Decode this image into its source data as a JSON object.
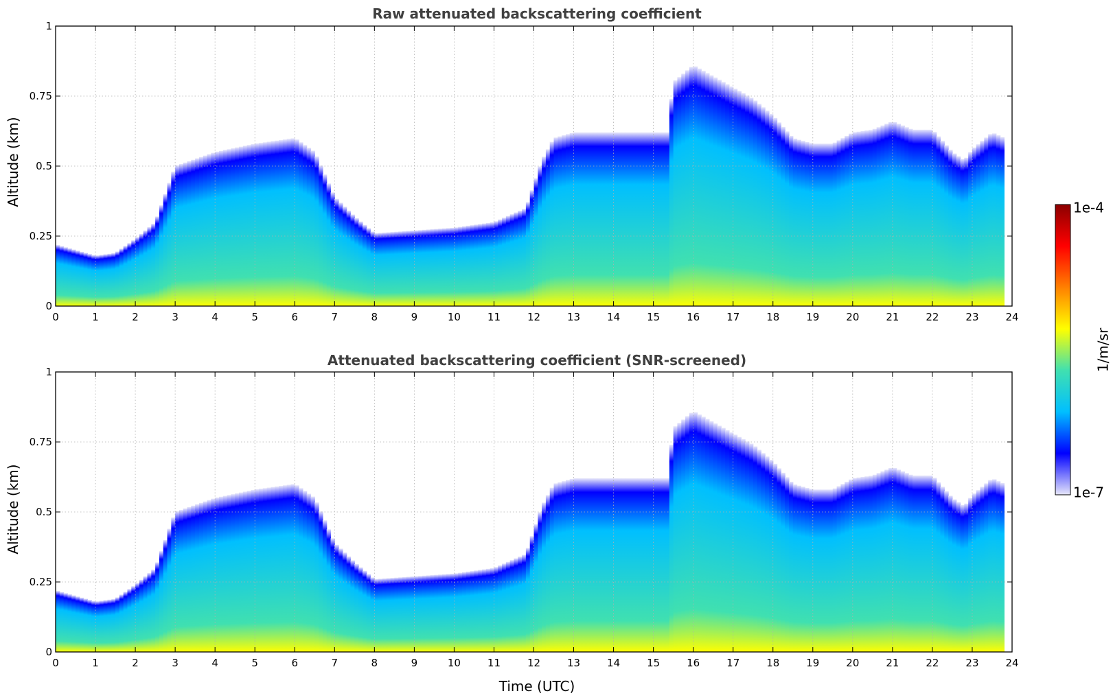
{
  "chart_data": [
    {
      "type": "heatmap",
      "title": "Raw attenuated backscattering coefficient",
      "xlabel": "",
      "ylabel": "Altitude (km)",
      "xlim": [
        0,
        24
      ],
      "ylim": [
        0,
        1
      ],
      "xticks": [
        "0",
        "1",
        "2",
        "3",
        "4",
        "5",
        "6",
        "7",
        "8",
        "9",
        "10",
        "11",
        "12",
        "13",
        "14",
        "15",
        "16",
        "17",
        "18",
        "19",
        "20",
        "21",
        "22",
        "23",
        "24"
      ],
      "yticks": [
        "0",
        "0.25",
        "0.5",
        "0.75",
        "1"
      ],
      "grid": true,
      "screened": false,
      "layer_top_km": {
        "time_utc": [
          0,
          0.5,
          1,
          1.5,
          2,
          2.5,
          3,
          4,
          5,
          6,
          6.5,
          7,
          7.5,
          8,
          9,
          10,
          11,
          11.8,
          12.2,
          12.5,
          13,
          14,
          15,
          15.35,
          15.5,
          16,
          16.5,
          17,
          17.5,
          18,
          18.5,
          19,
          19.5,
          20,
          20.5,
          21,
          21.5,
          22,
          22.5,
          22.8,
          23,
          23.5,
          23.8
        ],
        "altitude_km": [
          0.22,
          0.2,
          0.18,
          0.19,
          0.24,
          0.3,
          0.5,
          0.55,
          0.58,
          0.6,
          0.55,
          0.39,
          0.32,
          0.26,
          0.27,
          0.28,
          0.3,
          0.35,
          0.52,
          0.6,
          0.62,
          0.62,
          0.62,
          0.62,
          0.8,
          0.86,
          0.82,
          0.78,
          0.74,
          0.68,
          0.6,
          0.58,
          0.58,
          0.62,
          0.63,
          0.66,
          0.63,
          0.63,
          0.55,
          0.52,
          0.56,
          0.62,
          0.6
        ]
      }
    },
    {
      "type": "heatmap",
      "title": "Attenuated backscattering coefficient (SNR-screened)",
      "xlabel": "Time (UTC)",
      "ylabel": "Altitude (km)",
      "xlim": [
        0,
        24
      ],
      "ylim": [
        0,
        1
      ],
      "xticks": [
        "0",
        "1",
        "2",
        "3",
        "4",
        "5",
        "6",
        "7",
        "8",
        "9",
        "10",
        "11",
        "12",
        "13",
        "14",
        "15",
        "16",
        "17",
        "18",
        "19",
        "20",
        "21",
        "22",
        "23",
        "24"
      ],
      "yticks": [
        "0",
        "0.25",
        "0.5",
        "0.75",
        "1"
      ],
      "grid": true,
      "screened": true,
      "layer_top_km": {
        "time_utc": [
          0,
          0.5,
          1,
          1.5,
          2,
          2.5,
          3,
          4,
          5,
          6,
          6.5,
          7,
          7.5,
          8,
          9,
          10,
          11,
          11.8,
          12.2,
          12.5,
          13,
          14,
          15,
          15.35,
          15.5,
          16,
          16.5,
          17,
          17.5,
          18,
          18.5,
          19,
          19.5,
          20,
          20.5,
          21,
          21.5,
          22,
          22.5,
          22.8,
          23,
          23.5,
          23.8
        ],
        "altitude_km": [
          0.22,
          0.2,
          0.18,
          0.19,
          0.24,
          0.3,
          0.5,
          0.55,
          0.58,
          0.6,
          0.55,
          0.39,
          0.32,
          0.26,
          0.27,
          0.28,
          0.3,
          0.35,
          0.52,
          0.6,
          0.62,
          0.62,
          0.62,
          0.62,
          0.8,
          0.86,
          0.82,
          0.78,
          0.74,
          0.68,
          0.6,
          0.58,
          0.58,
          0.62,
          0.63,
          0.66,
          0.63,
          0.63,
          0.55,
          0.52,
          0.56,
          0.62,
          0.6
        ]
      }
    }
  ],
  "colorbar": {
    "max_label": "1e-4",
    "min_label": "1e-7",
    "unit_label": "1/m/sr",
    "scale": "log",
    "colors": [
      "#e6e6fa",
      "#0000ff",
      "#00bfff",
      "#40e0b0",
      "#ffff00",
      "#ff8000",
      "#ff0000",
      "#8b0000"
    ]
  }
}
